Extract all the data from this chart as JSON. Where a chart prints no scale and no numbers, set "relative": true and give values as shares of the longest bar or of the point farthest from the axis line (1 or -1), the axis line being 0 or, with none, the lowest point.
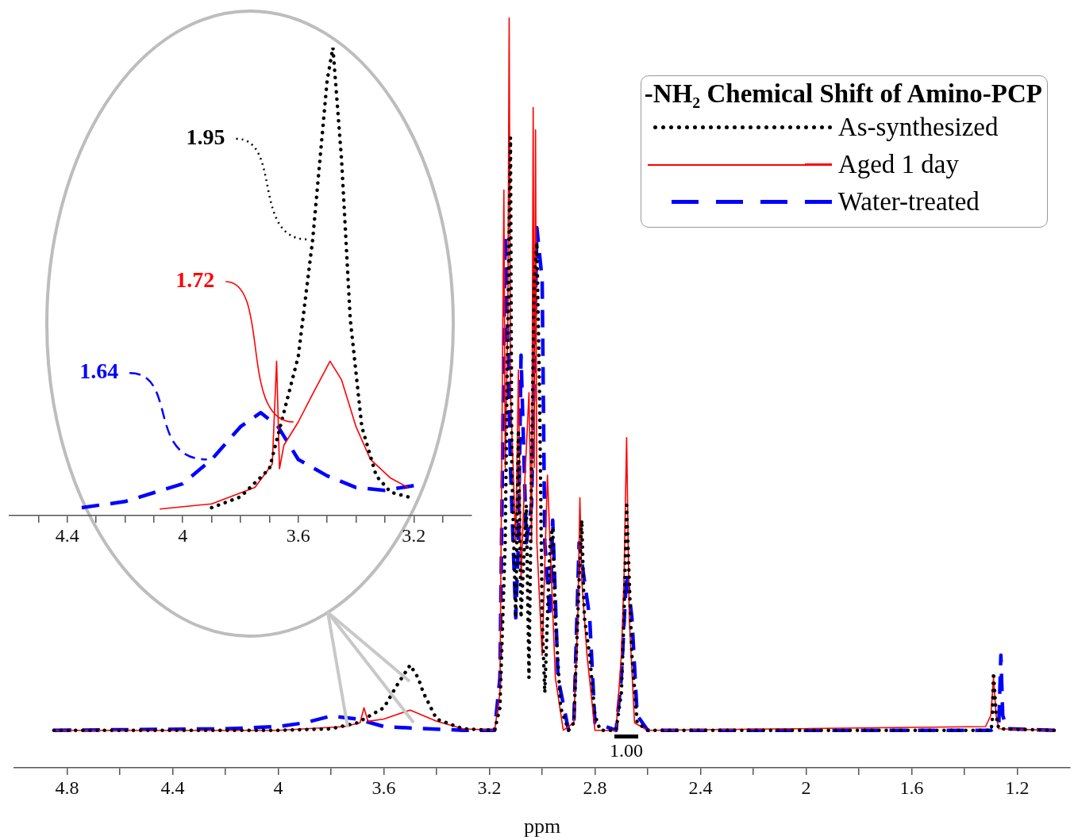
{
  "chart_data": [
    {
      "type": "line",
      "xlabel": "ppm",
      "relative": true,
      "tick_labels": "x",
      "legend": "top right",
      "legend_title": "-NH₂ Chemical Shift of Amino-PCP",
      "xlim": [
        5.0,
        1.0
      ],
      "xticks": [
        4.8,
        {
          "value": 4.6,
          "label": null
        },
        4.4,
        {
          "value": 4.2,
          "label": null
        },
        4,
        {
          "value": 3.8,
          "label": null
        },
        3.6,
        {
          "value": 3.4,
          "label": null
        },
        3.2,
        {
          "value": 3.0,
          "label": null
        },
        2.8,
        {
          "value": 2.6,
          "label": null
        },
        2.4,
        {
          "value": 2.2,
          "label": null
        },
        2,
        {
          "value": 1.8,
          "label": null
        },
        1.6,
        {
          "value": 1.4,
          "label": null
        },
        1.2
      ],
      "series": [
        {
          "name": "As-synthesized",
          "color": "#000000",
          "line_style": "dotted",
          "x": [
            4.85,
            4.0,
            3.8,
            3.7,
            3.6,
            3.55,
            3.5,
            3.47,
            3.45,
            3.4,
            3.3,
            3.18,
            3.16,
            3.14,
            3.13,
            3.12,
            3.115,
            3.1,
            3.09,
            3.08,
            3.06,
            3.05,
            3.04,
            3.03,
            3.02,
            3.01,
            3.0,
            2.99,
            2.97,
            2.96,
            2.95,
            2.93,
            2.9,
            2.88,
            2.86,
            2.85,
            2.84,
            2.82,
            2.8,
            2.78,
            2.72,
            2.7,
            2.69,
            2.68,
            2.67,
            2.66,
            2.64,
            2.6,
            1.3,
            1.295,
            1.29,
            1.28,
            1.27,
            1.06
          ],
          "values": [
            0.05,
            0.05,
            0.052,
            0.06,
            0.08,
            0.11,
            0.137,
            0.12,
            0.1,
            0.065,
            0.052,
            0.05,
            0.08,
            0.3,
            0.6,
            0.84,
            0.4,
            0.2,
            0.45,
            0.2,
            0.35,
            0.12,
            0.4,
            0.65,
            0.7,
            0.5,
            0.2,
            0.1,
            0.3,
            0.32,
            0.2,
            0.08,
            0.05,
            0.06,
            0.25,
            0.33,
            0.2,
            0.15,
            0.07,
            0.05,
            0.05,
            0.1,
            0.2,
            0.35,
            0.25,
            0.15,
            0.06,
            0.05,
            0.05,
            0.06,
            0.127,
            0.07,
            0.052,
            0.05
          ]
        },
        {
          "name": "Aged 1 day",
          "color": "#ff0000",
          "line_style": "solid",
          "x": [
            4.85,
            4.0,
            3.75,
            3.69,
            3.675,
            3.66,
            3.6,
            3.5,
            3.4,
            3.3,
            3.18,
            3.16,
            3.145,
            3.14,
            3.13,
            3.125,
            3.12,
            3.1,
            3.09,
            3.08,
            3.07,
            3.05,
            3.04,
            3.034,
            3.03,
            3.025,
            3.02,
            3.0,
            2.98,
            2.97,
            2.95,
            2.92,
            2.88,
            2.865,
            2.857,
            2.85,
            2.83,
            2.8,
            2.72,
            2.7,
            2.69,
            2.68,
            2.67,
            2.65,
            2.6,
            1.32,
            1.3,
            1.29,
            1.28,
            1.27,
            1.06
          ],
          "values": [
            0.05,
            0.05,
            0.055,
            0.06,
            0.08,
            0.062,
            0.065,
            0.077,
            0.062,
            0.052,
            0.05,
            0.1,
            0.77,
            0.4,
            0.6,
            1.0,
            0.5,
            0.3,
            0.53,
            0.25,
            0.35,
            0.5,
            0.3,
            0.88,
            0.4,
            0.85,
            0.3,
            0.15,
            0.39,
            0.3,
            0.12,
            0.05,
            0.06,
            0.2,
            0.36,
            0.25,
            0.15,
            0.05,
            0.05,
            0.15,
            0.25,
            0.44,
            0.2,
            0.06,
            0.05,
            0.055,
            0.07,
            0.12,
            0.07,
            0.052,
            0.05
          ]
        },
        {
          "name": "Water-treated",
          "color": "#0000ff",
          "line_style": "dashed",
          "x": [
            4.85,
            4.2,
            4.0,
            3.9,
            3.8,
            3.7,
            3.6,
            3.5,
            3.3,
            3.18,
            3.16,
            3.14,
            3.12,
            3.1,
            3.09,
            3.08,
            3.06,
            3.04,
            3.02,
            3.0,
            2.99,
            2.97,
            2.96,
            2.94,
            2.9,
            2.88,
            2.86,
            2.84,
            2.82,
            2.8,
            2.72,
            2.7,
            2.68,
            2.66,
            2.64,
            2.6,
            1.3,
            1.27,
            1.262,
            1.255,
            1.24,
            1.06
          ],
          "values": [
            0.05,
            0.052,
            0.055,
            0.06,
            0.069,
            0.065,
            0.055,
            0.053,
            0.05,
            0.05,
            0.12,
            0.71,
            0.4,
            0.2,
            0.3,
            0.55,
            0.3,
            0.35,
            0.72,
            0.65,
            0.3,
            0.2,
            0.33,
            0.12,
            0.05,
            0.06,
            0.3,
            0.25,
            0.2,
            0.06,
            0.05,
            0.12,
            0.26,
            0.2,
            0.07,
            0.05,
            0.05,
            0.055,
            0.15,
            0.07,
            0.052,
            0.05
          ]
        }
      ],
      "annotations": [
        "1.00"
      ]
    },
    {
      "type": "line",
      "relative": true,
      "tick_labels": "x",
      "xlim": [
        4.6,
        3.0
      ],
      "xticks": [
        {
          "value": 4.5,
          "label": null
        },
        4.4,
        {
          "value": 4.3,
          "label": null
        },
        {
          "value": 4.2,
          "label": null
        },
        {
          "value": 4.1,
          "label": null
        },
        4,
        {
          "value": 3.9,
          "label": null
        },
        {
          "value": 3.8,
          "label": null
        },
        {
          "value": 3.7,
          "label": null
        },
        3.6,
        {
          "value": 3.5,
          "label": null
        },
        {
          "value": 3.4,
          "label": null
        },
        {
          "value": 3.3,
          "label": null
        },
        3.2,
        {
          "value": 3.1,
          "label": null
        }
      ],
      "series": [
        {
          "color": "#000000",
          "line_style": "dotted",
          "x": [
            3.9,
            3.8,
            3.7,
            3.6,
            3.55,
            3.5,
            3.48,
            3.45,
            3.42,
            3.38,
            3.33,
            3.28,
            3.22
          ],
          "values": [
            0.017,
            0.04,
            0.1,
            0.34,
            0.59,
            0.93,
            1.0,
            0.76,
            0.42,
            0.19,
            0.085,
            0.05,
            0.04
          ]
        },
        {
          "color": "#ff0000",
          "line_style": "solid",
          "x": [
            4.08,
            3.9,
            3.75,
            3.72,
            3.69,
            3.675,
            3.665,
            3.65,
            3.6,
            3.55,
            3.49,
            3.45,
            3.4,
            3.35,
            3.28,
            3.22
          ],
          "values": [
            0.014,
            0.025,
            0.06,
            0.085,
            0.11,
            0.33,
            0.1,
            0.15,
            0.2,
            0.26,
            0.33,
            0.29,
            0.19,
            0.12,
            0.08,
            0.06
          ]
        },
        {
          "color": "#0000ff",
          "line_style": "dashed",
          "x": [
            4.35,
            4.2,
            4.0,
            3.9,
            3.8,
            3.73,
            3.67,
            3.6,
            3.5,
            3.4,
            3.3,
            3.2
          ],
          "values": [
            0.017,
            0.03,
            0.068,
            0.12,
            0.19,
            0.22,
            0.19,
            0.12,
            0.085,
            0.06,
            0.054,
            0.064
          ]
        }
      ],
      "annotations": [
        {
          "text": "1.95",
          "x": 3.55,
          "y": 0.59
        },
        {
          "text": "1.72",
          "x": 3.6,
          "y": 0.2
        },
        {
          "text": "1.64",
          "x": 3.9,
          "y": 0.12
        }
      ]
    }
  ]
}
